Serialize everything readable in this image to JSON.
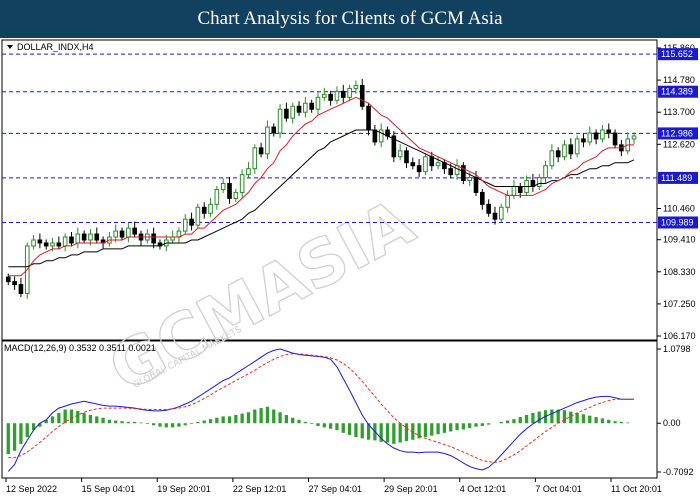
{
  "banner": {
    "title": "Chart Analysis for Clients of GCM Asia"
  },
  "chart_data": {
    "type": "candlestick",
    "symbol_label": "DOLLAR_INDX,H4",
    "price_ticks": [
      "115.860",
      "114.780",
      "113.700",
      "112.620",
      "110.460",
      "109.410",
      "108.330",
      "107.250",
      "106.170"
    ],
    "price_ylim": [
      106.17,
      115.86
    ],
    "levels": [
      {
        "value": 115.652,
        "label": "115.652"
      },
      {
        "value": 114.389,
        "label": "114.389"
      },
      {
        "value": 112.986,
        "label": "112.986"
      },
      {
        "value": 111.489,
        "label": "111.489"
      },
      {
        "value": 109.989,
        "label": "109.989"
      }
    ],
    "x_labels": [
      "12 Sep 2022",
      "15 Sep 04:01",
      "19 Sep 20:01",
      "22 Sep 12:01",
      "27 Sep 04:01",
      "29 Sep 20:01",
      "4 Oct 12:01",
      "7 Oct 04:01",
      "11 Oct 20:01"
    ],
    "close": [
      108.0,
      107.9,
      107.6,
      109.2,
      109.4,
      109.3,
      109.2,
      109.3,
      109.2,
      109.5,
      109.3,
      109.6,
      109.4,
      109.6,
      109.4,
      109.3,
      109.5,
      109.7,
      109.5,
      109.8,
      109.6,
      109.4,
      109.6,
      109.3,
      109.2,
      109.4,
      109.5,
      109.7,
      110.1,
      109.9,
      110.5,
      110.3,
      110.6,
      111.1,
      111.3,
      110.8,
      111.0,
      111.6,
      111.8,
      112.5,
      112.3,
      113.2,
      113.0,
      113.8,
      113.5,
      113.9,
      113.7,
      114.0,
      113.8,
      114.2,
      114.3,
      114.1,
      114.4,
      114.2,
      114.5,
      114.6,
      113.9,
      113.1,
      112.7,
      113.1,
      112.9,
      112.2,
      112.4,
      112.0,
      111.9,
      111.7,
      112.2,
      111.9,
      112.0,
      111.8,
      111.6,
      111.9,
      111.4,
      111.5,
      111.0,
      110.6,
      110.3,
      110.1,
      110.5,
      110.9,
      111.2,
      111.0,
      111.4,
      111.2,
      111.5,
      111.9,
      112.4,
      112.2,
      112.6,
      112.3,
      112.8,
      112.7,
      113.0,
      112.8,
      113.1,
      113.0,
      112.6,
      112.4,
      112.8,
      112.9
    ],
    "ma_fast": [
      108.2,
      108.2,
      108.2,
      108.4,
      108.7,
      108.9,
      109.0,
      109.1,
      109.1,
      109.2,
      109.2,
      109.3,
      109.3,
      109.3,
      109.3,
      109.3,
      109.4,
      109.4,
      109.4,
      109.5,
      109.5,
      109.5,
      109.5,
      109.5,
      109.5,
      109.5,
      109.5,
      109.5,
      109.6,
      109.6,
      109.8,
      109.8,
      110.0,
      110.2,
      110.4,
      110.5,
      110.6,
      110.8,
      111.0,
      111.3,
      111.5,
      111.8,
      112.0,
      112.4,
      112.6,
      112.9,
      113.1,
      113.3,
      113.4,
      113.6,
      113.7,
      113.8,
      113.9,
      114.0,
      114.1,
      114.2,
      114.1,
      114.0,
      113.8,
      113.6,
      113.5,
      113.3,
      113.1,
      112.9,
      112.7,
      112.5,
      112.4,
      112.3,
      112.2,
      112.1,
      112.0,
      111.9,
      111.8,
      111.7,
      111.6,
      111.4,
      111.2,
      111.1,
      111.0,
      110.9,
      110.9,
      110.9,
      110.9,
      110.9,
      111.0,
      111.1,
      111.3,
      111.4,
      111.5,
      111.7,
      111.8,
      112.0,
      112.1,
      112.2,
      112.4,
      112.5,
      112.5,
      112.5,
      112.6,
      112.6
    ],
    "ma_slow": [
      108.5,
      108.5,
      108.5,
      108.5,
      108.6,
      108.6,
      108.7,
      108.7,
      108.8,
      108.8,
      108.9,
      108.9,
      109.0,
      109.0,
      109.0,
      109.1,
      109.1,
      109.1,
      109.1,
      109.2,
      109.2,
      109.2,
      109.2,
      109.2,
      109.2,
      109.3,
      109.3,
      109.3,
      109.3,
      109.4,
      109.4,
      109.5,
      109.6,
      109.7,
      109.8,
      109.9,
      110.0,
      110.1,
      110.3,
      110.4,
      110.6,
      110.8,
      111.0,
      111.2,
      111.4,
      111.6,
      111.8,
      112.0,
      112.2,
      112.4,
      112.5,
      112.7,
      112.8,
      112.9,
      113.0,
      113.1,
      113.1,
      113.1,
      113.1,
      113.0,
      112.9,
      112.8,
      112.7,
      112.6,
      112.5,
      112.4,
      112.3,
      112.2,
      112.1,
      112.0,
      111.9,
      111.8,
      111.7,
      111.6,
      111.5,
      111.4,
      111.3,
      111.2,
      111.2,
      111.2,
      111.2,
      111.2,
      111.2,
      111.2,
      111.3,
      111.3,
      111.4,
      111.4,
      111.5,
      111.6,
      111.6,
      111.7,
      111.8,
      111.8,
      111.9,
      111.9,
      112.0,
      112.0,
      112.0,
      112.1
    ],
    "macd": {
      "label": "MACD(12,26,9) 0.3532 0.3511 0.0021",
      "ticks": [
        "1.0798",
        "0.00",
        "-0.7092"
      ],
      "ylim": [
        -0.7092,
        1.0798
      ],
      "hist": [
        -0.45,
        -0.4,
        -0.3,
        -0.2,
        -0.1,
        -0.05,
        0.05,
        0.1,
        0.15,
        0.2,
        0.2,
        0.18,
        0.15,
        0.12,
        0.1,
        0.08,
        0.05,
        0.04,
        0.03,
        0.02,
        0.02,
        0.01,
        -0.01,
        -0.03,
        -0.05,
        -0.06,
        -0.06,
        -0.05,
        -0.03,
        -0.01,
        0.02,
        0.04,
        0.06,
        0.08,
        0.1,
        0.1,
        0.12,
        0.14,
        0.16,
        0.2,
        0.22,
        0.24,
        0.2,
        0.16,
        0.12,
        0.08,
        0.05,
        0.02,
        -0.01,
        -0.04,
        -0.06,
        -0.08,
        -0.1,
        -0.14,
        -0.17,
        -0.2,
        -0.22,
        -0.24,
        -0.25,
        -0.27,
        -0.28,
        -0.3,
        -0.28,
        -0.26,
        -0.24,
        -0.22,
        -0.2,
        -0.18,
        -0.16,
        -0.14,
        -0.12,
        -0.1,
        -0.09,
        -0.07,
        -0.05,
        -0.04,
        -0.02,
        0.0,
        0.02,
        0.04,
        0.06,
        0.09,
        0.12,
        0.15,
        0.17,
        0.19,
        0.2,
        0.2,
        0.19,
        0.17,
        0.15,
        0.13,
        0.11,
        0.09,
        0.07,
        0.05,
        0.03,
        0.02,
        0.01,
        0.0
      ],
      "line": [
        -0.7,
        -0.6,
        -0.4,
        -0.25,
        -0.1,
        0.0,
        0.05,
        0.15,
        0.22,
        0.25,
        0.28,
        0.3,
        0.32,
        0.3,
        0.28,
        0.26,
        0.25,
        0.25,
        0.24,
        0.23,
        0.22,
        0.2,
        0.19,
        0.18,
        0.18,
        0.19,
        0.21,
        0.24,
        0.28,
        0.32,
        0.38,
        0.44,
        0.5,
        0.56,
        0.62,
        0.66,
        0.72,
        0.78,
        0.84,
        0.9,
        0.96,
        1.02,
        1.06,
        1.08,
        1.05,
        1.02,
        1.0,
        0.99,
        0.98,
        0.97,
        0.96,
        0.93,
        0.82,
        0.65,
        0.48,
        0.3,
        0.12,
        -0.02,
        -0.12,
        -0.22,
        -0.3,
        -0.36,
        -0.4,
        -0.42,
        -0.42,
        -0.43,
        -0.42,
        -0.42,
        -0.42,
        -0.44,
        -0.47,
        -0.52,
        -0.58,
        -0.63,
        -0.66,
        -0.68,
        -0.64,
        -0.56,
        -0.46,
        -0.36,
        -0.26,
        -0.16,
        -0.08,
        -0.01,
        0.05,
        0.1,
        0.14,
        0.18,
        0.22,
        0.26,
        0.3,
        0.33,
        0.36,
        0.38,
        0.39,
        0.39,
        0.37,
        0.35,
        0.35,
        0.35
      ],
      "signal": [
        -0.5,
        -0.5,
        -0.47,
        -0.42,
        -0.35,
        -0.28,
        -0.2,
        -0.12,
        -0.05,
        0.02,
        0.07,
        0.12,
        0.16,
        0.19,
        0.21,
        0.22,
        0.22,
        0.22,
        0.22,
        0.22,
        0.21,
        0.21,
        0.2,
        0.2,
        0.2,
        0.2,
        0.21,
        0.22,
        0.24,
        0.27,
        0.31,
        0.36,
        0.41,
        0.47,
        0.52,
        0.57,
        0.62,
        0.67,
        0.72,
        0.77,
        0.83,
        0.88,
        0.93,
        0.97,
        1.0,
        1.01,
        1.01,
        1.0,
        0.99,
        0.98,
        0.97,
        0.95,
        0.92,
        0.87,
        0.8,
        0.71,
        0.61,
        0.5,
        0.39,
        0.28,
        0.18,
        0.08,
        0.0,
        -0.07,
        -0.13,
        -0.18,
        -0.22,
        -0.25,
        -0.28,
        -0.31,
        -0.34,
        -0.38,
        -0.42,
        -0.46,
        -0.5,
        -0.54,
        -0.56,
        -0.57,
        -0.55,
        -0.51,
        -0.46,
        -0.4,
        -0.33,
        -0.26,
        -0.19,
        -0.12,
        -0.06,
        0.0,
        0.05,
        0.1,
        0.15,
        0.19,
        0.23,
        0.27,
        0.3,
        0.33,
        0.35,
        0.35,
        0.35,
        0.35
      ]
    },
    "colors": {
      "bull": "#2d8a2d",
      "bear": "#000000",
      "ma_fast": "#d0202a",
      "ma_slow": "#000000",
      "level_line": "#1a1acc",
      "level_badge": "#1a1acc",
      "macd_line": "#1a1acc",
      "signal_line": "#e03020",
      "hist": "#2f9e2f"
    },
    "watermark": {
      "main": "GCMASIA",
      "sub": "GLOBAL CAPITAL MARKETS"
    }
  }
}
